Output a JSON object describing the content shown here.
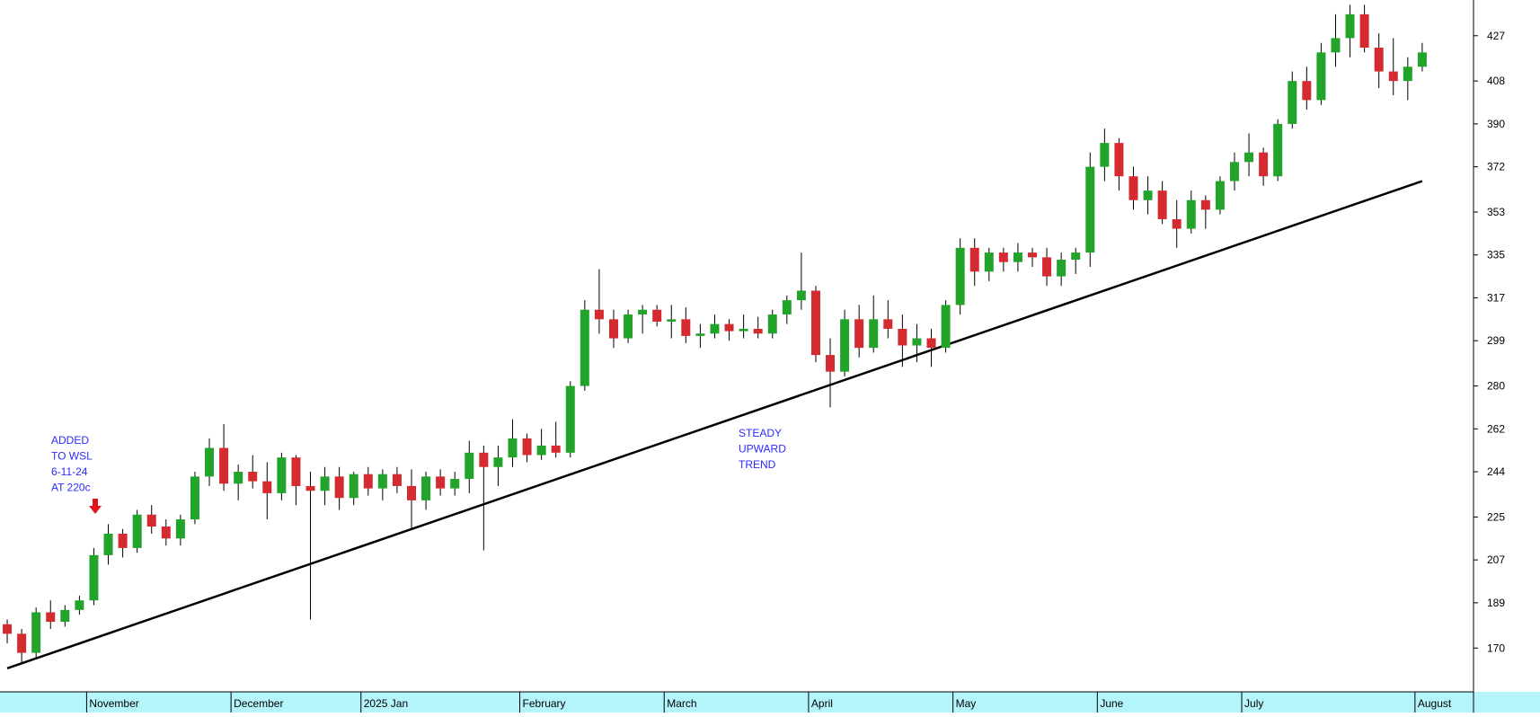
{
  "chart_data": {
    "type": "candlestick",
    "categories": [
      null,
      null,
      null,
      null,
      null,
      null,
      "November",
      null,
      null,
      null,
      null,
      null,
      null,
      null,
      null,
      null,
      "December",
      null,
      null,
      null,
      null,
      null,
      null,
      null,
      null,
      "2025 Jan",
      null,
      null,
      null,
      null,
      null,
      null,
      null,
      null,
      null,
      null,
      "February",
      null,
      null,
      null,
      null,
      null,
      null,
      null,
      null,
      null,
      "March",
      null,
      null,
      null,
      null,
      null,
      null,
      null,
      null,
      null,
      "April",
      null,
      null,
      null,
      null,
      null,
      null,
      null,
      null,
      null,
      "May",
      null,
      null,
      null,
      null,
      null,
      null,
      null,
      null,
      null,
      "June",
      null,
      null,
      null,
      null,
      null,
      null,
      null,
      null,
      null,
      "July",
      null,
      null,
      null,
      null,
      null,
      null,
      null,
      null,
      null,
      null,
      null,
      "August"
    ],
    "open": [
      180,
      176,
      168,
      185,
      181,
      186,
      190,
      209,
      218,
      212,
      226,
      221,
      216,
      224,
      242,
      254,
      239,
      244,
      240,
      235,
      250,
      238,
      236,
      242,
      233,
      243,
      237,
      243,
      238,
      232,
      242,
      237,
      241,
      252,
      246,
      250,
      258,
      251,
      255,
      252,
      280,
      312,
      308,
      300,
      310,
      312,
      307,
      308,
      301,
      302,
      306,
      303,
      304,
      302,
      310,
      316,
      320,
      293,
      286,
      308,
      296,
      308,
      304,
      297,
      300,
      296,
      314,
      338,
      328,
      336,
      332,
      336,
      334,
      326,
      333,
      336,
      372,
      382,
      368,
      358,
      362,
      350,
      346,
      358,
      354,
      366,
      374,
      378,
      368,
      390,
      408,
      400,
      420,
      426,
      436,
      422,
      412,
      408,
      414
    ],
    "high": [
      182,
      178,
      187,
      190,
      188,
      192,
      212,
      222,
      220,
      228,
      230,
      224,
      226,
      244,
      258,
      264,
      247,
      251,
      248,
      252,
      251,
      244,
      246,
      246,
      244,
      246,
      245,
      246,
      245,
      244,
      245,
      244,
      257,
      255,
      255,
      266,
      260,
      262,
      265,
      282,
      316,
      329,
      312,
      312,
      314,
      314,
      314,
      313,
      306,
      310,
      308,
      310,
      309,
      312,
      318,
      336,
      322,
      300,
      312,
      314,
      318,
      316,
      310,
      306,
      304,
      316,
      342,
      342,
      338,
      338,
      340,
      338,
      338,
      336,
      338,
      378,
      388,
      384,
      372,
      368,
      366,
      358,
      362,
      360,
      368,
      378,
      386,
      380,
      392,
      412,
      414,
      424,
      436,
      440,
      440,
      428,
      426,
      418,
      424
    ],
    "low": [
      172,
      164,
      166,
      178,
      179,
      184,
      188,
      205,
      208,
      210,
      218,
      213,
      213,
      222,
      238,
      236,
      232,
      237,
      224,
      232,
      230,
      182,
      230,
      228,
      230,
      234,
      232,
      235,
      220,
      228,
      234,
      234,
      235,
      211,
      238,
      246,
      248,
      249,
      250,
      250,
      278,
      302,
      296,
      298,
      302,
      305,
      300,
      298,
      296,
      300,
      299,
      300,
      300,
      300,
      306,
      312,
      290,
      271,
      284,
      292,
      294,
      300,
      288,
      290,
      288,
      294,
      310,
      322,
      324,
      328,
      328,
      330,
      322,
      322,
      327,
      330,
      366,
      362,
      354,
      352,
      348,
      338,
      344,
      346,
      352,
      362,
      368,
      364,
      366,
      388,
      396,
      398,
      414,
      418,
      420,
      405,
      402,
      400,
      412
    ],
    "close": [
      176,
      168,
      185,
      181,
      186,
      190,
      209,
      218,
      212,
      226,
      221,
      216,
      224,
      242,
      254,
      239,
      244,
      240,
      235,
      250,
      238,
      236,
      242,
      233,
      243,
      237,
      243,
      238,
      232,
      242,
      237,
      241,
      252,
      246,
      250,
      258,
      251,
      255,
      252,
      280,
      312,
      308,
      300,
      310,
      312,
      307,
      308,
      301,
      302,
      306,
      303,
      304,
      302,
      310,
      316,
      320,
      293,
      286,
      308,
      296,
      308,
      304,
      297,
      300,
      296,
      314,
      338,
      328,
      336,
      332,
      336,
      334,
      326,
      333,
      336,
      372,
      382,
      368,
      358,
      362,
      350,
      346,
      358,
      354,
      366,
      374,
      378,
      368,
      390,
      408,
      400,
      420,
      426,
      436,
      422,
      412,
      408,
      414,
      420
    ],
    "up_color": "#22a32a",
    "down_color": "#d42a30",
    "ylim": [
      152,
      442
    ],
    "yticks": [
      170,
      189,
      207,
      225,
      244,
      262,
      280,
      299,
      317,
      335,
      353,
      372,
      390,
      408,
      427
    ],
    "trend_line": {
      "x": [
        0,
        98
      ],
      "y": [
        161.5,
        366
      ],
      "color": "#000000"
    },
    "annotations": [
      {
        "lines": [
          "ADDED",
          "TO WSL",
          "6-11-24",
          "AT 220c"
        ],
        "color": "#2b2bff"
      },
      {
        "lines": [
          "STEADY",
          "UPWARD",
          "TREND"
        ],
        "color": "#2b2bff"
      }
    ]
  }
}
